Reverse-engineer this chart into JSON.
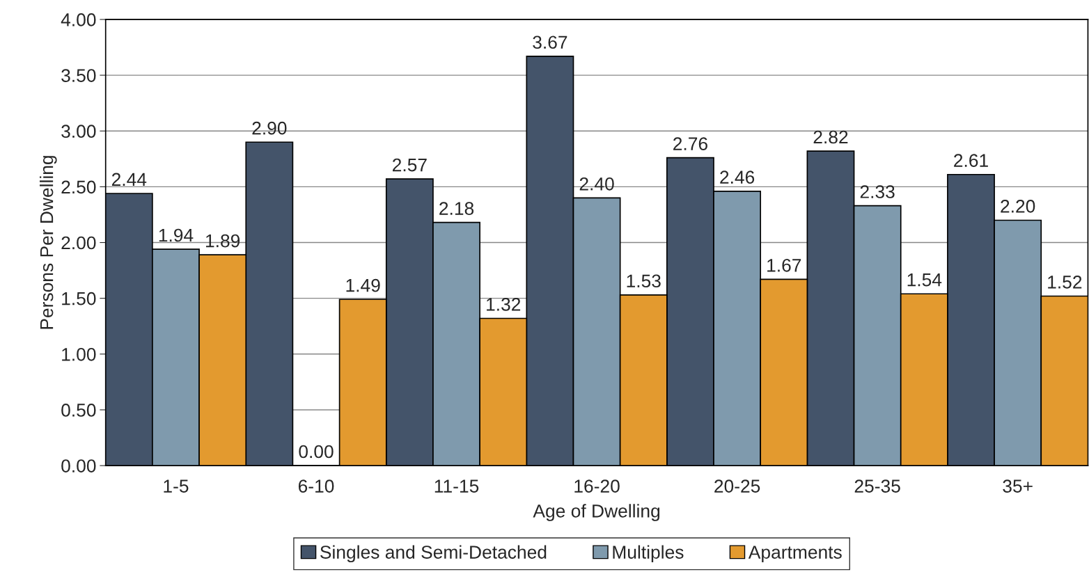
{
  "chart_data": {
    "type": "bar",
    "xlabel": "Age of Dwelling",
    "ylabel": "Persons Per Dwelling",
    "categories": [
      "1-5",
      "6-10",
      "11-15",
      "16-20",
      "20-25",
      "25-35",
      "35+"
    ],
    "series": [
      {
        "name": "Singles and Semi-Detached",
        "color": "#44546a",
        "values": [
          2.44,
          2.9,
          2.57,
          3.67,
          2.76,
          2.82,
          2.61
        ],
        "value_labels": [
          "2.44",
          "2.90",
          "2.57",
          "3.67",
          "2.76",
          "2.82",
          "2.61"
        ]
      },
      {
        "name": "Multiples",
        "color": "#7f9aad",
        "values": [
          1.94,
          0,
          2.18,
          2.4,
          2.46,
          2.33,
          2.2
        ],
        "value_labels": [
          "1.94",
          "0.00",
          "2.18",
          "2.40",
          "2.46",
          "2.33",
          "2.20"
        ]
      },
      {
        "name": "Apartments",
        "color": "#e39a2f",
        "values": [
          1.89,
          1.49,
          1.32,
          1.53,
          1.67,
          1.54,
          1.52
        ],
        "value_labels": [
          "1.89",
          "1.49",
          "1.32",
          "1.53",
          "1.67",
          "1.54",
          "1.52"
        ]
      }
    ],
    "ylim": [
      0,
      4
    ],
    "yticks": [
      {
        "value": 0,
        "label": "0.00"
      },
      {
        "value": 0.5,
        "label": "0.50"
      },
      {
        "value": 1,
        "label": "1.00"
      },
      {
        "value": 1.5,
        "label": "1.50"
      },
      {
        "value": 2,
        "label": "2.00"
      },
      {
        "value": 2.5,
        "label": "2.50"
      },
      {
        "value": 3,
        "label": "3.00"
      },
      {
        "value": 3.5,
        "label": "3.50"
      },
      {
        "value": 4,
        "label": "4.00"
      }
    ],
    "grid": "y",
    "legend": "bottom"
  }
}
